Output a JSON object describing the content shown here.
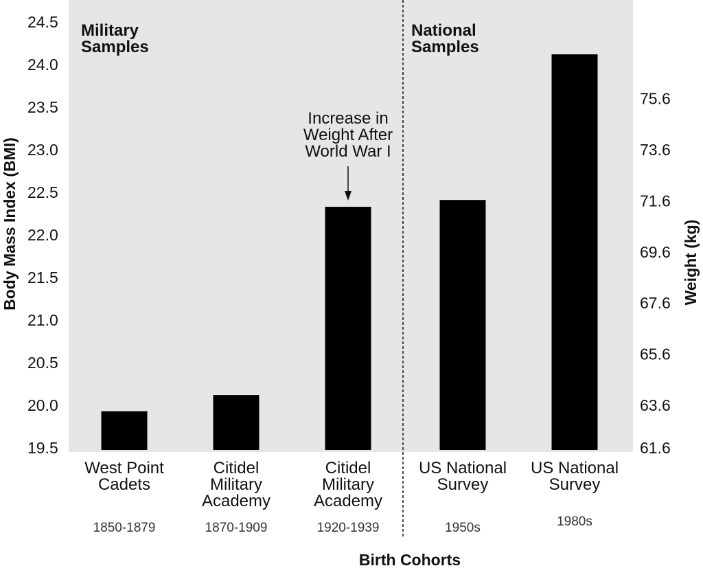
{
  "chart_data": {
    "type": "bar",
    "categories": [
      [
        "West Point",
        "Cadets"
      ],
      [
        "Citidel",
        "Military",
        "Academy"
      ],
      [
        "Citidel",
        "Military",
        "Academy"
      ],
      [
        "US National",
        "Survey"
      ],
      [
        "US National",
        "Survey"
      ]
    ],
    "cohorts": [
      "1850-1879",
      "1870-1909",
      "1920-1939",
      "1950s",
      "1980s"
    ],
    "values": [
      19.93,
      20.12,
      22.33,
      22.41,
      24.12
    ],
    "bar_color": "#000000",
    "background_color": "#e6e6e6",
    "xlabel": "Birth Cohorts",
    "ylabel": "Body Mass Index (BMI)",
    "ylim": [
      19.5,
      24.5
    ],
    "yticks": [
      "19.5",
      "20.0",
      "20.5",
      "21.0",
      "21.5",
      "22.0",
      "22.5",
      "23.0",
      "23.5",
      "24.0",
      "24.5"
    ],
    "y2label": "Weight (kg)",
    "y2ticks": [
      {
        "label": "61.6",
        "bmi": 19.5
      },
      {
        "label": "63.6",
        "bmi": 20.0
      },
      {
        "label": "65.6",
        "bmi": 20.6
      },
      {
        "label": "67.6",
        "bmi": 21.2
      },
      {
        "label": "69.6",
        "bmi": 21.8
      },
      {
        "label": "71.6",
        "bmi": 22.4
      },
      {
        "label": "73.6",
        "bmi": 23.0
      },
      {
        "label": "75.6",
        "bmi": 23.6
      }
    ],
    "groups": [
      {
        "label_lines": [
          "Military",
          "Samples"
        ],
        "categories": [
          0,
          1,
          2
        ]
      },
      {
        "label_lines": [
          "National",
          "Samples"
        ],
        "categories": [
          3,
          4
        ]
      }
    ],
    "annotation": {
      "lines": [
        "Increase in",
        "Weight After",
        "World War I"
      ],
      "category": 2
    },
    "grid": false
  }
}
